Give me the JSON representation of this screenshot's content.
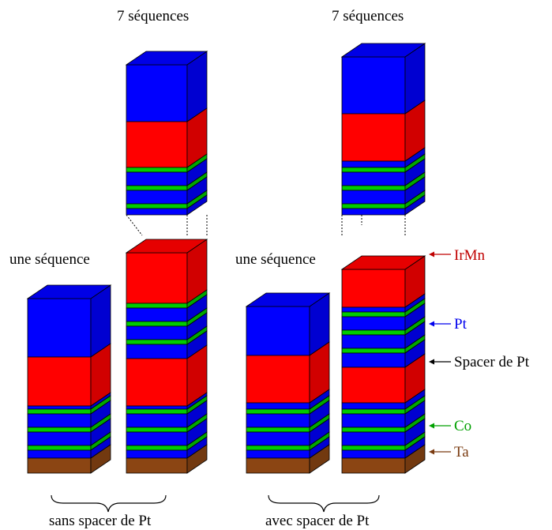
{
  "labels": {
    "top_left": "7 séquences",
    "top_right": "7 séquences",
    "mid_left": "une séquence",
    "mid_right": "une séquence",
    "bottom_left": "sans spacer de Pt",
    "bottom_right": "avec spacer de Pt"
  },
  "legend": [
    {
      "key": "irmn",
      "text": "IrMn",
      "color": "#c00000"
    },
    {
      "key": "pt",
      "text": "Pt",
      "color": "#0000ee"
    },
    {
      "key": "spacer",
      "text": "Spacer de Pt",
      "color": "#000000"
    },
    {
      "key": "co",
      "text": "Co",
      "color": "#00a000"
    },
    {
      "key": "ta",
      "text": "Ta",
      "color": "#7a3b10"
    }
  ],
  "colors": {
    "pt": "#0000ff",
    "irmn": "#ff0000",
    "co": "#00cc00",
    "ta": "#8b4513",
    "outline": "#000000"
  }
}
